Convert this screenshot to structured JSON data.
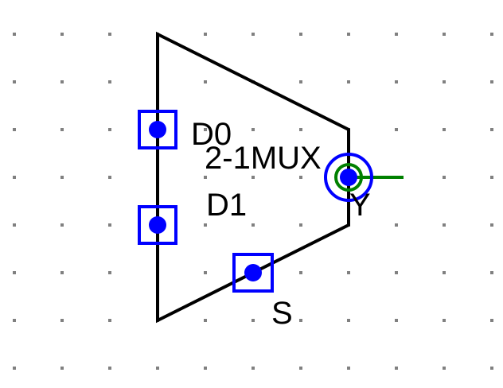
{
  "component": {
    "name": "2-1MUX",
    "inputs": [
      "D0",
      "D1"
    ],
    "select": "S",
    "output": "Y"
  },
  "colors": {
    "background": "#ffffff",
    "grid_dot": "#808080",
    "body_stroke": "#000000",
    "pin": "#0000ff",
    "wire": "#008000"
  }
}
